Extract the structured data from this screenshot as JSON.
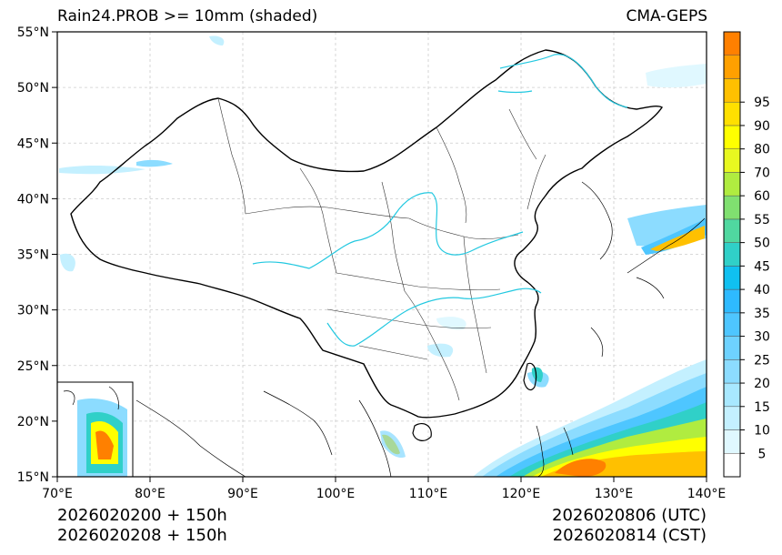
{
  "header": {
    "title": "Rain24.PROB >= 10mm (shaded)",
    "model": "CMA-GEPS"
  },
  "footer": {
    "init_utc": "2026020200 + 150h",
    "init_cst": "2026020208 + 150h",
    "valid_utc": "2026020806 (UTC)",
    "valid_cst": "2026020814 (CST)"
  },
  "axes": {
    "lon_labels": [
      "70°E",
      "80°E",
      "90°E",
      "100°E",
      "110°E",
      "120°E",
      "130°E",
      "140°E"
    ],
    "lat_labels": [
      "55°N",
      "50°N",
      "45°N",
      "40°N",
      "35°N",
      "30°N",
      "25°N",
      "20°N",
      "15°N"
    ],
    "lon_range": [
      70,
      140
    ],
    "lat_range": [
      15,
      55
    ]
  },
  "colorbar": {
    "labels": [
      "5",
      "10",
      "15",
      "20",
      "25",
      "30",
      "35",
      "40",
      "45",
      "50",
      "55",
      "60",
      "70",
      "80",
      "90",
      "95"
    ],
    "colors": [
      "#ffffff",
      "#e0f8ff",
      "#c4f0ff",
      "#a8e8ff",
      "#8cdcff",
      "#6ed2ff",
      "#4ec6ff",
      "#2ebaff",
      "#10c0f0",
      "#30d0c8",
      "#50d8a0",
      "#80e070",
      "#b0ec40",
      "#e8f820",
      "#ffff00",
      "#ffe000",
      "#ffc000",
      "#ffa000",
      "#ff8000"
    ]
  },
  "colors": {
    "border": "#000000",
    "province": "#333333",
    "river": "#22c8e0",
    "grid": "#cccccc"
  }
}
